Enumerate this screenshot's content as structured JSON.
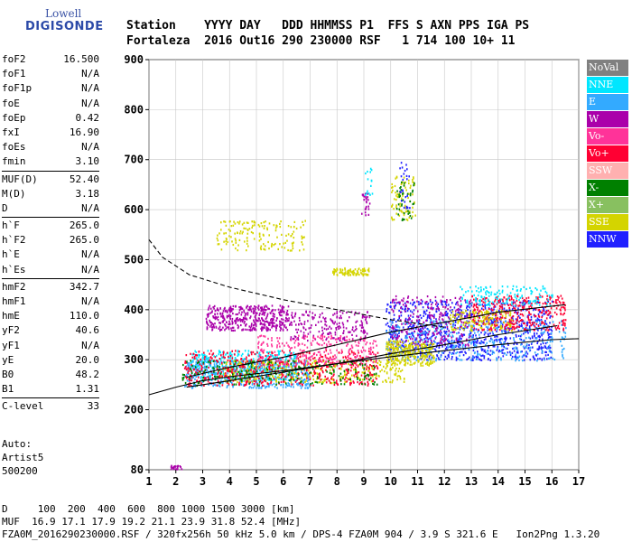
{
  "logo": {
    "line1": "Lowell",
    "line2": "DIGISONDE"
  },
  "header": {
    "row1": "Station    YYYY DAY   DDD HHMMSS P1  FFS S AXN PPS IGA PS",
    "row2": "Fortaleza  2016 Out16 290 230000 RSF   1 714 100 10+ 11"
  },
  "params": [
    {
      "k": "foF2",
      "v": "16.500"
    },
    {
      "k": "foF1",
      "v": "N/A"
    },
    {
      "k": "foF1p",
      "v": "N/A"
    },
    {
      "k": "foE",
      "v": "N/A"
    },
    {
      "k": "foEp",
      "v": "0.42"
    },
    {
      "k": "fxI",
      "v": "16.90"
    },
    {
      "k": "foEs",
      "v": "N/A"
    },
    {
      "k": "fmin",
      "v": "3.10"
    },
    {
      "sep": true
    },
    {
      "k": "MUF(D)",
      "v": "52.40"
    },
    {
      "k": "M(D)",
      "v": "3.18"
    },
    {
      "k": "D",
      "v": "N/A"
    },
    {
      "sep": true
    },
    {
      "k": "h`F",
      "v": "265.0"
    },
    {
      "k": "h`F2",
      "v": "265.0"
    },
    {
      "k": "h`E",
      "v": "N/A"
    },
    {
      "k": "h`Es",
      "v": "N/A"
    },
    {
      "sep": true
    },
    {
      "k": "hmF2",
      "v": "342.7"
    },
    {
      "k": "hmF1",
      "v": "N/A"
    },
    {
      "k": "hmE",
      "v": "110.0"
    },
    {
      "k": "yF2",
      "v": "40.6"
    },
    {
      "k": "yF1",
      "v": "N/A"
    },
    {
      "k": "yE",
      "v": "20.0"
    },
    {
      "k": "B0",
      "v": "48.2"
    },
    {
      "k": "B1",
      "v": "1.31"
    },
    {
      "sep": true
    },
    {
      "k": "C-level",
      "v": "33"
    }
  ],
  "auto": [
    "Auto:",
    "Artist5",
    "500200"
  ],
  "footer": {
    "line1": "D     100  200  400  600  800 1000 1500 3000 [km]",
    "line2": "MUF  16.9 17.1 17.9 19.2 21.1 23.9 31.8 52.4 [MHz]",
    "line3": "FZA0M_2016290230000.RSF / 320fx256h 50 kHz 5.0 km / DPS-4 FZA0M 904 / 3.9 S 321.6 E   Ion2Png 1.3.20"
  },
  "legend": [
    {
      "name": "NoVal",
      "color": "#808080"
    },
    {
      "name": "NNE",
      "color": "#00e6ff"
    },
    {
      "name": "E",
      "color": "#33aaff"
    },
    {
      "name": "W",
      "color": "#aa00aa"
    },
    {
      "name": "Vo-",
      "color": "#ff3399"
    },
    {
      "name": "Vo+",
      "color": "#ff0033"
    },
    {
      "name": "SSW",
      "color": "#ffb0b0"
    },
    {
      "name": "X-",
      "color": "#008000"
    },
    {
      "name": "X+",
      "color": "#88c060"
    },
    {
      "name": "SSE",
      "color": "#d4d400"
    },
    {
      "name": "NNW",
      "color": "#2020ff"
    }
  ],
  "chart_data": {
    "type": "scatter",
    "xlim": [
      1,
      17
    ],
    "ylim": [
      80,
      900
    ],
    "x_ticks": [
      1,
      2,
      3,
      4,
      5,
      6,
      7,
      8,
      9,
      10,
      11,
      12,
      13,
      14,
      15,
      16,
      17
    ],
    "y_ticks": [
      80,
      200,
      300,
      400,
      500,
      600,
      700,
      800,
      900
    ],
    "grid": true,
    "legend_position": "right",
    "clusters": [
      {
        "mode": "W",
        "x": [
          3.1,
          6.2
        ],
        "y": [
          360,
          410
        ],
        "n": 420
      },
      {
        "mode": "W",
        "x": [
          6.2,
          9.2
        ],
        "y": [
          340,
          400
        ],
        "n": 200
      },
      {
        "mode": "NNE",
        "x": [
          2.5,
          6.5
        ],
        "y": [
          260,
          320
        ],
        "n": 420
      },
      {
        "mode": "E",
        "x": [
          2.3,
          7
        ],
        "y": [
          245,
          300
        ],
        "n": 480
      },
      {
        "mode": "SSE",
        "x": [
          3.5,
          10.5
        ],
        "y": [
          255,
          300
        ],
        "n": 380
      },
      {
        "mode": "Vo+",
        "x": [
          2.3,
          9.5
        ],
        "y": [
          250,
          320
        ],
        "n": 520
      },
      {
        "mode": "Vo-",
        "x": [
          5,
          9.5
        ],
        "y": [
          290,
          350
        ],
        "n": 260
      },
      {
        "mode": "X-",
        "x": [
          2.2,
          9.5
        ],
        "y": [
          250,
          300
        ],
        "n": 200
      },
      {
        "mode": "NNW",
        "x": [
          9.8,
          16
        ],
        "y": [
          300,
          420
        ],
        "n": 900
      },
      {
        "mode": "E",
        "x": [
          9.8,
          16.5
        ],
        "y": [
          300,
          380
        ],
        "n": 400
      },
      {
        "mode": "Vo+",
        "x": [
          13,
          16.5
        ],
        "y": [
          360,
          430
        ],
        "n": 360
      },
      {
        "mode": "W",
        "x": [
          10,
          13
        ],
        "y": [
          330,
          430
        ],
        "n": 260
      },
      {
        "mode": "SSE",
        "x": [
          9.8,
          11.6
        ],
        "y": [
          290,
          340
        ],
        "n": 260
      },
      {
        "mode": "SSE",
        "x": [
          12.2,
          14.5
        ],
        "y": [
          360,
          400
        ],
        "n": 140
      },
      {
        "mode": "NNE",
        "x": [
          12.5,
          16
        ],
        "y": [
          410,
          450
        ],
        "n": 140
      },
      {
        "mode": "SSE",
        "x": [
          3.5,
          6.8
        ],
        "y": [
          520,
          580
        ],
        "n": 160
      },
      {
        "mode": "SSE",
        "x": [
          7.8,
          9.2
        ],
        "y": [
          470,
          485
        ],
        "n": 90
      },
      {
        "mode": "SSE",
        "x": [
          10,
          10.9
        ],
        "y": [
          580,
          670
        ],
        "n": 80
      },
      {
        "mode": "X-",
        "x": [
          10.2,
          10.9
        ],
        "y": [
          580,
          660
        ],
        "n": 40
      },
      {
        "mode": "W",
        "x": [
          8.9,
          9.2
        ],
        "y": [
          590,
          640
        ],
        "n": 25
      },
      {
        "mode": "NNW",
        "x": [
          10.3,
          10.7
        ],
        "y": [
          600,
          700
        ],
        "n": 25
      },
      {
        "mode": "W",
        "x": [
          1.8,
          2.2
        ],
        "y": [
          82,
          90
        ],
        "n": 20
      },
      {
        "mode": "NNE",
        "x": [
          9,
          9.3
        ],
        "y": [
          630,
          690
        ],
        "n": 15
      }
    ],
    "lines": [
      {
        "name": "O-trace",
        "x": [
          2.4,
          4,
          6,
          8,
          10,
          12,
          14,
          16.2
        ],
        "y": [
          245,
          258,
          275,
          292,
          312,
          330,
          350,
          368
        ]
      },
      {
        "name": "X-trace",
        "x": [
          2.4,
          4,
          6,
          8,
          10,
          12,
          14,
          16.5
        ],
        "y": [
          265,
          285,
          305,
          330,
          355,
          375,
          395,
          410
        ]
      },
      {
        "name": "Profile",
        "x": [
          1,
          2,
          3,
          4,
          6,
          8,
          10,
          12,
          14,
          16,
          17
        ],
        "y": [
          230,
          245,
          258,
          266,
          278,
          292,
          306,
          318,
          330,
          340,
          342
        ]
      },
      {
        "name": "MUF",
        "style": "dashed",
        "x": [
          1,
          1.5,
          2.5,
          4,
          6,
          8,
          10,
          12
        ],
        "y": [
          540,
          505,
          470,
          445,
          420,
          400,
          380,
          365
        ]
      }
    ]
  }
}
